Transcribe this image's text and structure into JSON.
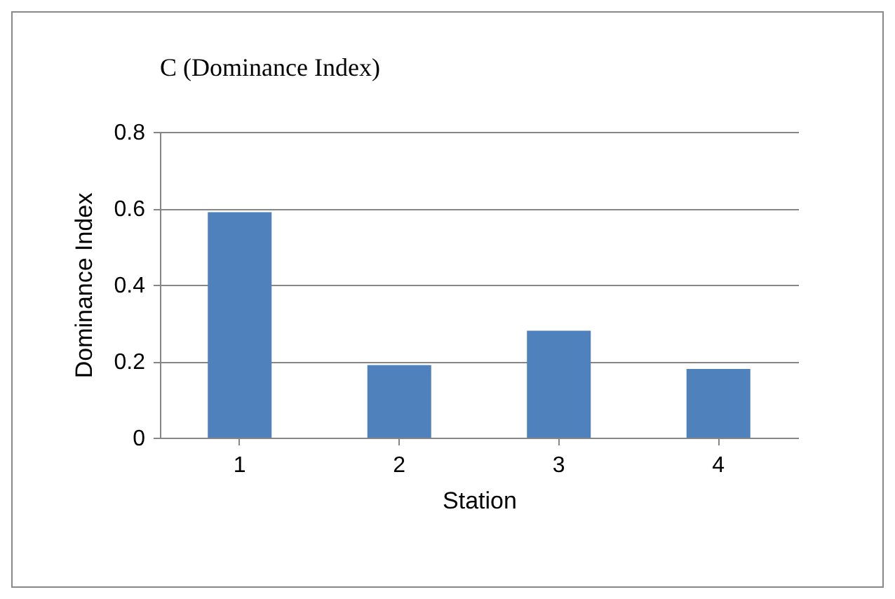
{
  "chart_data": {
    "type": "bar",
    "title": "C (Dominance Index)",
    "xlabel": "Station",
    "ylabel": "Dominance Index",
    "categories": [
      "1",
      "2",
      "3",
      "4"
    ],
    "values": [
      0.59,
      0.19,
      0.28,
      0.18
    ],
    "color": "#4f81bd",
    "ylim": [
      0,
      0.8
    ],
    "yticks": [
      0,
      0.2,
      0.4,
      0.6,
      0.8
    ],
    "grid": "y"
  }
}
